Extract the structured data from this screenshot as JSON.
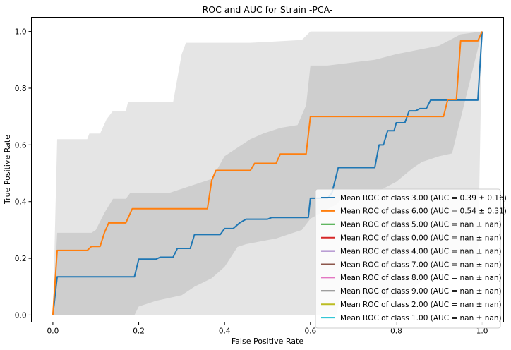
{
  "chart_data": {
    "type": "line",
    "title": "ROC and AUC for Strain -PCA-",
    "xlabel": "False Positive Rate",
    "ylabel": "True Positive Rate",
    "xlim": [
      -0.05,
      1.05
    ],
    "ylim": [
      -0.025,
      1.05
    ],
    "x_ticks": [
      0.0,
      0.2,
      0.4,
      0.6,
      0.8,
      1.0
    ],
    "y_ticks": [
      0.0,
      0.2,
      0.4,
      0.6,
      0.8,
      1.0
    ],
    "x_tick_labels": [
      "0.0",
      "0.2",
      "0.4",
      "0.6",
      "0.8",
      "1.0"
    ],
    "y_tick_labels": [
      "0.0",
      "0.2",
      "0.4",
      "0.6",
      "0.8",
      "1.0"
    ],
    "grid": false,
    "legend_position": "lower-right",
    "bands": [
      {
        "color": "#a0a0a0",
        "opacity": 0.28,
        "upper": [
          [
            0,
            0
          ],
          [
            0.01,
            0.62
          ],
          [
            0.08,
            0.62
          ],
          [
            0.085,
            0.64
          ],
          [
            0.11,
            0.64
          ],
          [
            0.125,
            0.69
          ],
          [
            0.14,
            0.72
          ],
          [
            0.17,
            0.72
          ],
          [
            0.175,
            0.75
          ],
          [
            0.28,
            0.75
          ],
          [
            0.3,
            0.92
          ],
          [
            0.31,
            0.96
          ],
          [
            0.46,
            0.96
          ],
          [
            0.58,
            0.97
          ],
          [
            0.6,
            1.0
          ],
          [
            1.0,
            1.0
          ]
        ],
        "lower": [
          [
            0,
            0
          ],
          [
            0.01,
            0
          ],
          [
            0.66,
            0.0
          ],
          [
            0.67,
            0.06
          ],
          [
            0.8,
            0.06
          ],
          [
            0.83,
            0.08
          ],
          [
            0.88,
            0.15
          ],
          [
            0.93,
            0.16
          ],
          [
            0.99,
            0.16
          ],
          [
            1.0,
            1.0
          ]
        ]
      },
      {
        "color": "#a0a0a0",
        "opacity": 0.33,
        "upper": [
          [
            0,
            0
          ],
          [
            0.01,
            0.29
          ],
          [
            0.09,
            0.29
          ],
          [
            0.1,
            0.3
          ],
          [
            0.12,
            0.36
          ],
          [
            0.14,
            0.41
          ],
          [
            0.17,
            0.41
          ],
          [
            0.18,
            0.43
          ],
          [
            0.27,
            0.43
          ],
          [
            0.37,
            0.48
          ],
          [
            0.4,
            0.56
          ],
          [
            0.46,
            0.62
          ],
          [
            0.49,
            0.64
          ],
          [
            0.53,
            0.66
          ],
          [
            0.57,
            0.67
          ],
          [
            0.59,
            0.74
          ],
          [
            0.6,
            0.88
          ],
          [
            0.64,
            0.88
          ],
          [
            0.75,
            0.9
          ],
          [
            0.8,
            0.92
          ],
          [
            0.9,
            0.95
          ],
          [
            0.95,
            0.99
          ],
          [
            1.0,
            1.0
          ]
        ],
        "lower": [
          [
            0,
            0
          ],
          [
            0.01,
            0
          ],
          [
            0.19,
            0.0
          ],
          [
            0.2,
            0.03
          ],
          [
            0.24,
            0.05
          ],
          [
            0.3,
            0.07
          ],
          [
            0.33,
            0.1
          ],
          [
            0.37,
            0.13
          ],
          [
            0.4,
            0.17
          ],
          [
            0.43,
            0.24
          ],
          [
            0.45,
            0.25
          ],
          [
            0.52,
            0.27
          ],
          [
            0.56,
            0.29
          ],
          [
            0.58,
            0.3
          ],
          [
            0.6,
            0.34
          ],
          [
            0.66,
            0.39
          ],
          [
            0.68,
            0.42
          ],
          [
            0.75,
            0.43
          ],
          [
            0.8,
            0.47
          ],
          [
            0.84,
            0.52
          ],
          [
            0.86,
            0.54
          ],
          [
            0.9,
            0.56
          ],
          [
            0.93,
            0.57
          ],
          [
            1.0,
            1.0
          ]
        ]
      }
    ],
    "series": [
      {
        "name": "Mean ROC of class 3.00 (AUC = 0.39 ± 0.16)",
        "color": "#1f77b4",
        "points": [
          [
            0,
            0
          ],
          [
            0.01,
            0.135
          ],
          [
            0.19,
            0.135
          ],
          [
            0.2,
            0.197
          ],
          [
            0.24,
            0.197
          ],
          [
            0.25,
            0.204
          ],
          [
            0.28,
            0.204
          ],
          [
            0.29,
            0.235
          ],
          [
            0.32,
            0.235
          ],
          [
            0.33,
            0.284
          ],
          [
            0.39,
            0.284
          ],
          [
            0.4,
            0.305
          ],
          [
            0.42,
            0.305
          ],
          [
            0.435,
            0.325
          ],
          [
            0.45,
            0.338
          ],
          [
            0.5,
            0.338
          ],
          [
            0.51,
            0.344
          ],
          [
            0.595,
            0.344
          ],
          [
            0.6,
            0.412
          ],
          [
            0.64,
            0.412
          ],
          [
            0.65,
            0.43
          ],
          [
            0.665,
            0.52
          ],
          [
            0.75,
            0.52
          ],
          [
            0.76,
            0.6
          ],
          [
            0.77,
            0.6
          ],
          [
            0.78,
            0.65
          ],
          [
            0.795,
            0.65
          ],
          [
            0.8,
            0.678
          ],
          [
            0.82,
            0.678
          ],
          [
            0.83,
            0.72
          ],
          [
            0.845,
            0.72
          ],
          [
            0.855,
            0.728
          ],
          [
            0.87,
            0.728
          ],
          [
            0.88,
            0.758
          ],
          [
            0.99,
            0.758
          ],
          [
            1.0,
            1.0
          ]
        ]
      },
      {
        "name": "Mean ROC of class 6.00 (AUC = 0.54 ± 0.31)",
        "color": "#ff7f0e",
        "points": [
          [
            0,
            0
          ],
          [
            0.01,
            0.228
          ],
          [
            0.08,
            0.228
          ],
          [
            0.09,
            0.242
          ],
          [
            0.11,
            0.242
          ],
          [
            0.12,
            0.29
          ],
          [
            0.13,
            0.325
          ],
          [
            0.17,
            0.325
          ],
          [
            0.185,
            0.375
          ],
          [
            0.36,
            0.375
          ],
          [
            0.37,
            0.475
          ],
          [
            0.38,
            0.51
          ],
          [
            0.46,
            0.51
          ],
          [
            0.47,
            0.535
          ],
          [
            0.52,
            0.535
          ],
          [
            0.53,
            0.568
          ],
          [
            0.59,
            0.568
          ],
          [
            0.6,
            0.7
          ],
          [
            0.91,
            0.7
          ],
          [
            0.92,
            0.76
          ],
          [
            0.94,
            0.76
          ],
          [
            0.95,
            0.967
          ],
          [
            0.99,
            0.967
          ],
          [
            1.0,
            1.0
          ]
        ]
      },
      {
        "name": "Mean ROC of class 5.00 (AUC = nan ± nan)",
        "color": "#2ca02c",
        "points": []
      },
      {
        "name": "Mean ROC of class 0.00 (AUC = nan ± nan)",
        "color": "#d62728",
        "points": []
      },
      {
        "name": "Mean ROC of class 4.00 (AUC = nan ± nan)",
        "color": "#9467bd",
        "points": []
      },
      {
        "name": "Mean ROC of class 7.00 (AUC = nan ± nan)",
        "color": "#8c564b",
        "points": []
      },
      {
        "name": "Mean ROC of class 8.00 (AUC = nan ± nan)",
        "color": "#e377c2",
        "points": []
      },
      {
        "name": "Mean ROC of class 9.00 (AUC = nan ± nan)",
        "color": "#7f7f7f",
        "points": []
      },
      {
        "name": "Mean ROC of class 2.00 (AUC = nan ± nan)",
        "color": "#bcbd22",
        "points": []
      },
      {
        "name": "Mean ROC of class 1.00 (AUC = nan ± nan)",
        "color": "#17becf",
        "points": []
      }
    ]
  }
}
